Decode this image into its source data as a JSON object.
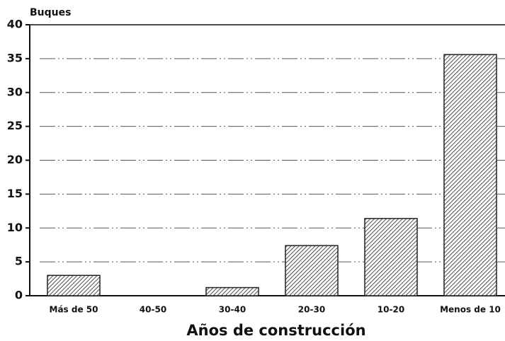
{
  "chart_data": {
    "type": "bar",
    "y_label": "Buques",
    "x_label": "Años de construcción",
    "categories": [
      "Más de 50",
      "40-50",
      "30-40",
      "20-30",
      "10-20",
      "Menos de 10"
    ],
    "values": [
      3.0,
      0,
      1.2,
      7.4,
      11.4,
      35.6
    ],
    "color": "#222222",
    "ylim": [
      0,
      40
    ],
    "yticks": [
      0,
      5,
      10,
      15,
      20,
      25,
      30,
      35,
      40
    ],
    "grid": true
  }
}
